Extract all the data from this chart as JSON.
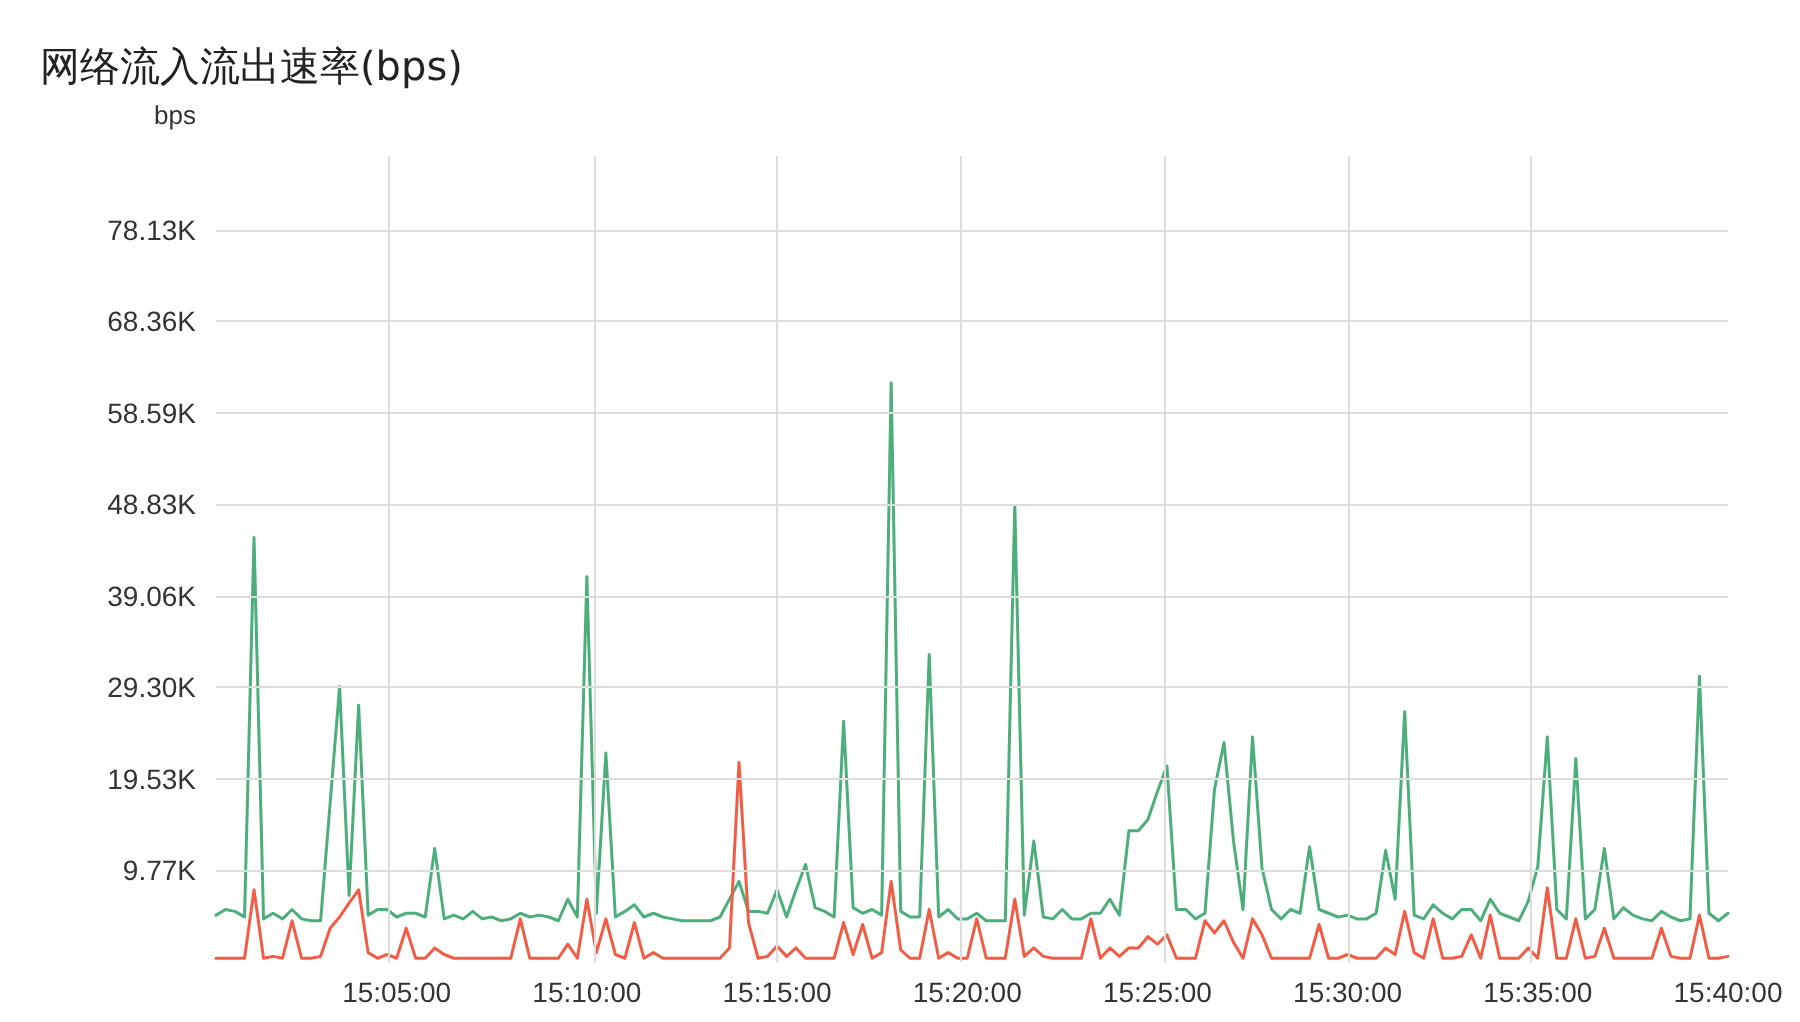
{
  "chart_data": {
    "type": "line",
    "title": "网络流入流出速率(bps)",
    "ylabel": "bps",
    "x": [
      15.00417,
      15.00833,
      15.0125,
      15.01667,
      15.02083,
      15.025,
      15.02917,
      15.03333,
      15.0375,
      15.04167,
      15.04583,
      15.05,
      15.05417,
      15.05833,
      15.0625,
      15.06667,
      15.07083,
      15.075,
      15.07917,
      15.08333,
      15.0875,
      15.09167,
      15.09583,
      15.1,
      15.10417,
      15.10833,
      15.1125,
      15.11667,
      15.12083,
      15.125,
      15.12917,
      15.13333,
      15.1375,
      15.14167,
      15.14583,
      15.15,
      15.15417,
      15.15833,
      15.1625,
      15.16667,
      15.17083,
      15.175,
      15.17917,
      15.18333,
      15.1875,
      15.19167,
      15.19583,
      15.2,
      15.20417,
      15.20833,
      15.2125,
      15.21667,
      15.22083,
      15.225,
      15.22917,
      15.23333,
      15.2375,
      15.24167,
      15.24583,
      15.25,
      15.25417,
      15.25833,
      15.2625,
      15.26667,
      15.27083,
      15.275,
      15.27917,
      15.28333,
      15.2875,
      15.29167,
      15.29583,
      15.3,
      15.30417,
      15.30833,
      15.3125,
      15.31667,
      15.32083,
      15.325,
      15.32917,
      15.33333,
      15.3375,
      15.34167,
      15.34583,
      15.35,
      15.35417,
      15.35833,
      15.3625,
      15.36667,
      15.37083,
      15.375,
      15.37917,
      15.38333,
      15.3875,
      15.39167,
      15.39583,
      15.4,
      15.40417,
      15.40833,
      15.4125,
      15.41667,
      15.42083,
      15.425,
      15.42917,
      15.43333,
      15.4375,
      15.44167,
      15.44583,
      15.45,
      15.45417,
      15.45833,
      15.4625,
      15.46667,
      15.47083,
      15.475,
      15.47917,
      15.48333,
      15.4875,
      15.49167,
      15.49583,
      15.5,
      15.50417,
      15.50833,
      15.5125,
      15.51667,
      15.52083,
      15.525,
      15.52917,
      15.53333,
      15.5375,
      15.54167,
      15.54583,
      15.55,
      15.55417,
      15.55833,
      15.5625,
      15.56667,
      15.57083,
      15.575,
      15.57917,
      15.58333,
      15.5875,
      15.59167,
      15.59583,
      15.6,
      15.60417,
      15.60833,
      15.6125,
      15.61667,
      15.62083,
      15.625,
      15.62917,
      15.63333,
      15.6375,
      15.64167,
      15.64583,
      15.65,
      15.65417,
      15.65833,
      15.6625,
      15.66667
    ],
    "series": [
      {
        "color": "#4cae7a",
        "values": [
          5000,
          5600,
          5400,
          4800,
          45300,
          4600,
          5200,
          4600,
          5600,
          4600,
          4400,
          4400,
          16900,
          29400,
          7100,
          27400,
          5000,
          5600,
          5600,
          4800,
          5200,
          5200,
          4800,
          12100,
          4600,
          5000,
          4600,
          5400,
          4600,
          4800,
          4400,
          4600,
          5200,
          4800,
          5000,
          4800,
          4400,
          6700,
          4800,
          41100,
          5200,
          22300,
          4800,
          5400,
          6100,
          4800,
          5200,
          4800,
          4600,
          4400,
          4400,
          4400,
          4400,
          4800,
          6700,
          8600,
          5400,
          5400,
          5200,
          7700,
          4800,
          7700,
          10400,
          5800,
          5400,
          4800,
          25700,
          5800,
          5200,
          5600,
          5000,
          61800,
          5400,
          4800,
          4800,
          32800,
          4800,
          5600,
          4600,
          4600,
          5200,
          4400,
          4400,
          4400,
          48700,
          5000,
          12900,
          4800,
          4600,
          5600,
          4600,
          4600,
          5200,
          5200,
          6700,
          5000,
          14000,
          14000,
          15200,
          18200,
          20900,
          5600,
          5600,
          4600,
          5200,
          18400,
          23400,
          12900,
          5600,
          24000,
          10000,
          5600,
          4600,
          5600,
          5200,
          12300,
          5600,
          5200,
          4800,
          5000,
          4600,
          4600,
          5200,
          11900,
          6700,
          26700,
          5000,
          4600,
          6100,
          5200,
          4600,
          5600,
          5600,
          4400,
          6700,
          5200,
          4800,
          4400,
          6500,
          10200,
          24000,
          5600,
          4600,
          21700,
          4600,
          5600,
          12100,
          4600,
          5800,
          5000,
          4600,
          4400,
          5400,
          4800,
          4400,
          4600,
          30500,
          5200,
          4400,
          5200
        ]
      },
      {
        "color": "#f25c45",
        "values": [
          400,
          400,
          400,
          400,
          7700,
          400,
          600,
          400,
          4400,
          400,
          400,
          600,
          3600,
          4800,
          6300,
          7700,
          1000,
          400,
          800,
          400,
          3600,
          400,
          400,
          1500,
          800,
          400,
          400,
          400,
          400,
          400,
          400,
          400,
          4600,
          400,
          400,
          400,
          400,
          1900,
          400,
          6700,
          1000,
          4600,
          800,
          400,
          4200,
          400,
          1000,
          400,
          400,
          400,
          400,
          400,
          400,
          400,
          1500,
          21300,
          4200,
          400,
          600,
          1700,
          600,
          1500,
          400,
          400,
          400,
          400,
          4200,
          800,
          4000,
          400,
          1000,
          8600,
          1300,
          400,
          400,
          5600,
          400,
          1000,
          400,
          400,
          4600,
          400,
          400,
          400,
          6700,
          600,
          1500,
          600,
          400,
          400,
          400,
          400,
          4600,
          400,
          1500,
          600,
          1500,
          1500,
          2700,
          1900,
          2900,
          400,
          400,
          400,
          4400,
          3100,
          4400,
          2100,
          400,
          4600,
          2900,
          400,
          400,
          400,
          400,
          400,
          4000,
          400,
          400,
          800,
          400,
          400,
          400,
          1500,
          800,
          5400,
          1000,
          400,
          4600,
          400,
          400,
          600,
          2900,
          400,
          5000,
          400,
          400,
          400,
          1500,
          400,
          7900,
          400,
          400,
          4600,
          400,
          600,
          3600,
          400,
          400,
          400,
          400,
          400,
          3600,
          600,
          400,
          400,
          5000,
          400,
          400,
          600
        ]
      }
    ],
    "xlim": [
      15.00417,
      15.66667
    ],
    "xticks": [
      {
        "value": 15.08333,
        "label": "15:05:00"
      },
      {
        "value": 15.16667,
        "label": "15:10:00"
      },
      {
        "value": 15.25,
        "label": "15:15:00"
      },
      {
        "value": 15.33333,
        "label": "15:20:00"
      },
      {
        "value": 15.41667,
        "label": "15:25:00"
      },
      {
        "value": 15.5,
        "label": "15:30:00"
      },
      {
        "value": 15.58333,
        "label": "15:35:00"
      },
      {
        "value": 15.66667,
        "label": "15:40:00"
      }
    ],
    "ylim": [
      0,
      86000
    ],
    "yticks": [
      {
        "value": 9765.625,
        "label": "9.77K"
      },
      {
        "value": 19531.25,
        "label": "19.53K"
      },
      {
        "value": 29296.875,
        "label": "29.30K"
      },
      {
        "value": 39062.5,
        "label": "39.06K"
      },
      {
        "value": 48828.125,
        "label": "48.83K"
      },
      {
        "value": 58593.75,
        "label": "58.59K"
      },
      {
        "value": 68359.375,
        "label": "68.36K"
      },
      {
        "value": 78125,
        "label": "78.13K"
      }
    ],
    "grid": true,
    "marker": "none",
    "line_style": "solid"
  }
}
